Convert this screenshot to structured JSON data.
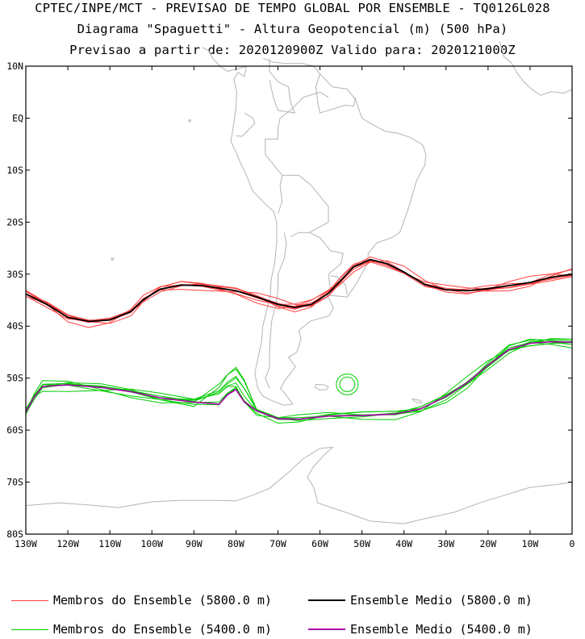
{
  "title": {
    "line1": "CPTEC/INPE/MCT - PREVISAO DE TEMPO GLOBAL POR ENSEMBLE - TQ0126L028",
    "line2": "Diagrama \"Spaguetti\" - Altura Geopotencial (m) (500 hPa)",
    "line3": "Previsao a partir de: 2020120900Z  Valido para: 2020121000Z"
  },
  "map": {
    "lon_range": [
      -130,
      0
    ],
    "lat_range": [
      -80,
      10
    ],
    "lat_ticks": [
      "10N",
      "EQ",
      "10S",
      "20S",
      "30S",
      "40S",
      "50S",
      "60S",
      "70S",
      "80S"
    ],
    "lon_ticks": [
      "130W",
      "120W",
      "110W",
      "100W",
      "90W",
      "80W",
      "70W",
      "60W",
      "50W",
      "40W",
      "30W",
      "20W",
      "10W",
      "0"
    ],
    "coastline_color": "#b4b4b4"
  },
  "contours": {
    "member_5800": {
      "color": "#ff4040",
      "label": "Membros do Ensemble (5800.0 m)",
      "mean_lat_by_lon": [
        [
          -130,
          -33.8
        ],
        [
          -125,
          -35.8
        ],
        [
          -120,
          -38.3
        ],
        [
          -115,
          -39.1
        ],
        [
          -110,
          -38.8
        ],
        [
          -105,
          -37.2
        ],
        [
          -102,
          -34.9
        ],
        [
          -98,
          -32.9
        ],
        [
          -93,
          -32.1
        ],
        [
          -88,
          -32.2
        ],
        [
          -80,
          -33.2
        ],
        [
          -75,
          -34.4
        ],
        [
          -70,
          -35.8
        ],
        [
          -66,
          -36.4
        ],
        [
          -62,
          -35.8
        ],
        [
          -58,
          -33.7
        ],
        [
          -55,
          -31.2
        ],
        [
          -52,
          -28.6
        ],
        [
          -48,
          -27.2
        ],
        [
          -44,
          -28.0
        ],
        [
          -40,
          -29.6
        ],
        [
          -35,
          -32.0
        ],
        [
          -30,
          -33.0
        ],
        [
          -25,
          -33.2
        ],
        [
          -20,
          -32.8
        ],
        [
          -15,
          -32.2
        ],
        [
          -10,
          -31.6
        ],
        [
          -5,
          -30.6
        ],
        [
          0,
          -30.0
        ]
      ]
    },
    "mean_5800": {
      "color": "#000000",
      "label": "Ensemble Medio (5800.0 m)"
    },
    "member_5400": {
      "color": "#00cc00",
      "label": "Membros do Ensemble (5400.0 m)",
      "mean_lat_by_lon": [
        [
          -130,
          -56.5
        ],
        [
          -128,
          -53.6
        ],
        [
          -126,
          -51.6
        ],
        [
          -120,
          -51.3
        ],
        [
          -112,
          -51.8
        ],
        [
          -105,
          -52.6
        ],
        [
          -98,
          -53.8
        ],
        [
          -90,
          -54.6
        ],
        [
          -84,
          -55.0
        ],
        [
          -82,
          -53.2
        ],
        [
          -80,
          -52.2
        ],
        [
          -78,
          -54.6
        ],
        [
          -75,
          -56.3
        ],
        [
          -70,
          -57.8
        ],
        [
          -65,
          -57.9
        ],
        [
          -58,
          -57.3
        ],
        [
          -50,
          -57.2
        ],
        [
          -42,
          -56.9
        ],
        [
          -36,
          -55.9
        ],
        [
          -30,
          -53.5
        ],
        [
          -25,
          -50.9
        ],
        [
          -20,
          -47.5
        ],
        [
          -15,
          -44.5
        ],
        [
          -10,
          -43.3
        ],
        [
          -5,
          -43.0
        ],
        [
          0,
          -43.1
        ]
      ]
    },
    "mean_5400": {
      "color": "#aa00aa",
      "label": "Ensemble Medio (5400.0 m)"
    }
  },
  "legend": {
    "item1": "Membros do Ensemble (5800.0 m)",
    "item2": "Ensemble Medio (5800.0 m)",
    "item3": "Membros do Ensemble (5400.0 m)",
    "item4": "Ensemble Medio (5400.0 m)"
  }
}
